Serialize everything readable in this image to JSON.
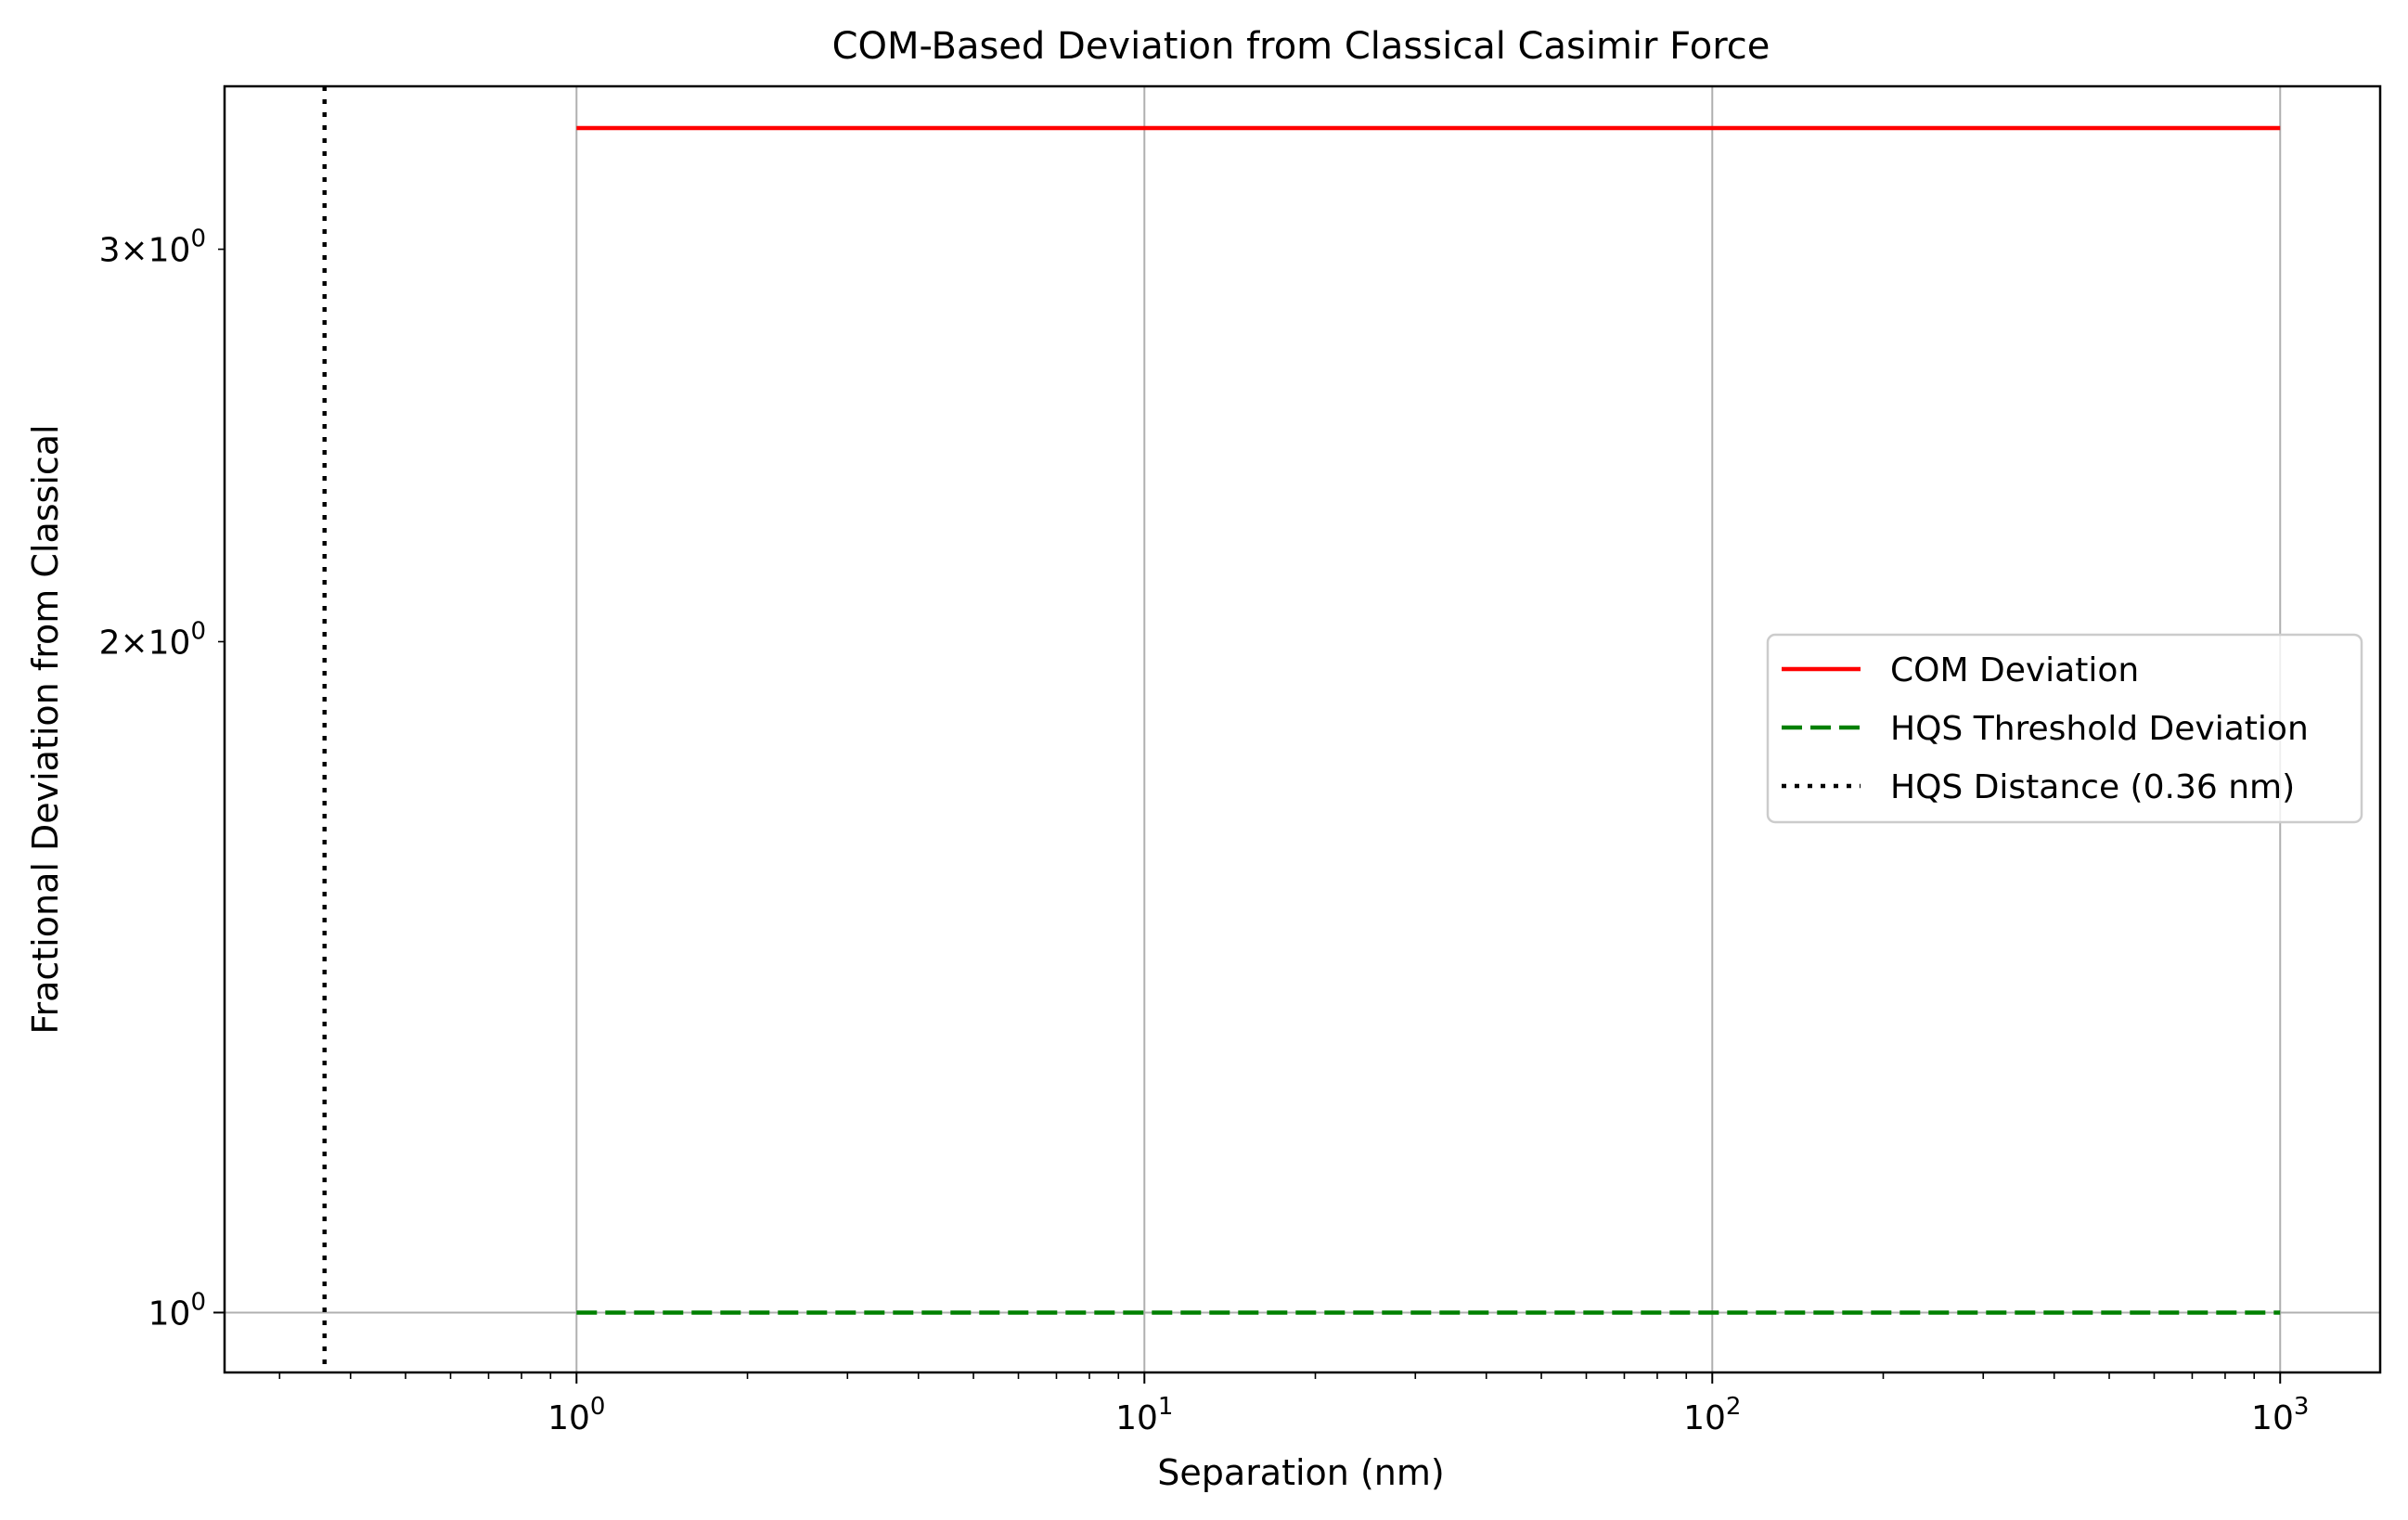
{
  "chart_data": {
    "type": "line",
    "title": "COM-Based Deviation from Classical Casimir Force",
    "xlabel": "Separation (nm)",
    "ylabel": "Fractional Deviation from Classical",
    "xscale": "log",
    "yscale": "log",
    "xlim": [
      0.24,
      1500
    ],
    "ylim": [
      0.94,
      3.55
    ],
    "grid": true,
    "legend_position": "center-right",
    "x_ticks": [
      {
        "value": 1,
        "base": "10",
        "exp": "0"
      },
      {
        "value": 10,
        "base": "10",
        "exp": "1"
      },
      {
        "value": 100,
        "base": "10",
        "exp": "2"
      },
      {
        "value": 1000,
        "base": "10",
        "exp": "3"
      }
    ],
    "y_ticks": [
      {
        "value": 1,
        "mant": "",
        "base": "10",
        "exp": "0"
      },
      {
        "value": 2,
        "mant": "2×",
        "base": "10",
        "exp": "0"
      },
      {
        "value": 3,
        "mant": "3×",
        "base": "10",
        "exp": "0"
      }
    ],
    "series": [
      {
        "name": "COM Deviation",
        "color": "#ff0000",
        "style": "solid",
        "x": [
          1,
          1000
        ],
        "y": [
          3.4,
          3.4
        ]
      },
      {
        "name": "HQS Threshold Deviation",
        "color": "#008000",
        "style": "dashed",
        "x": [
          1,
          1000
        ],
        "y": [
          1.0,
          1.0
        ]
      }
    ],
    "vlines": [
      {
        "name": "HQS Distance (0.36 nm)",
        "color": "#000000",
        "style": "dotted",
        "x": 0.36
      }
    ]
  }
}
